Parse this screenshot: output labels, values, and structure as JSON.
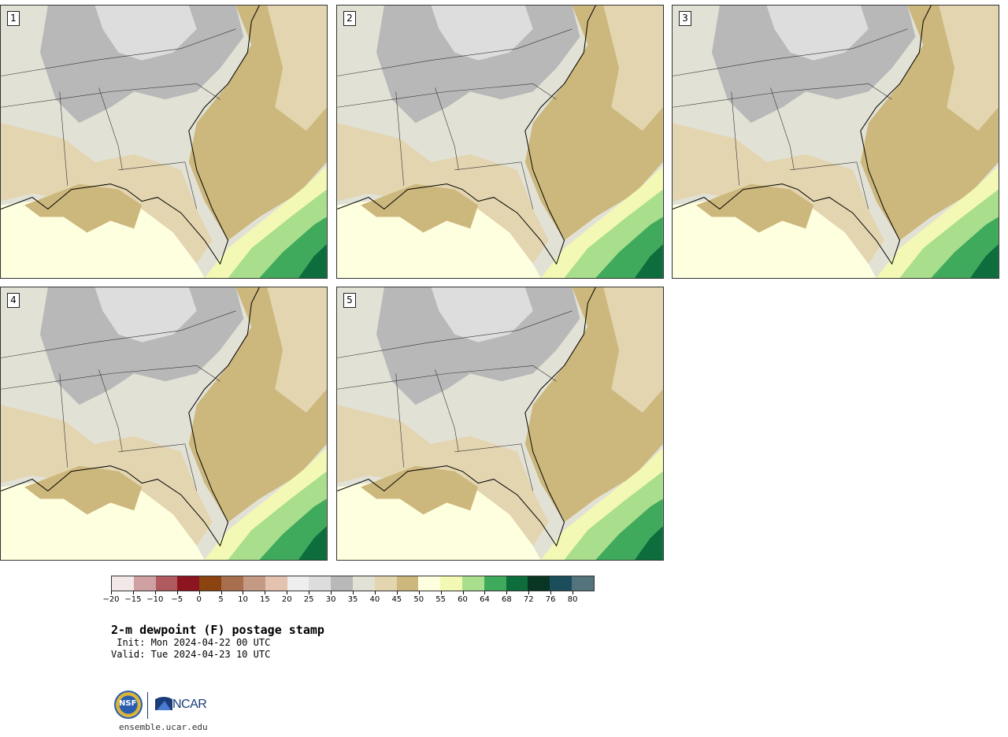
{
  "panels": [
    {
      "label": "1"
    },
    {
      "label": "2"
    },
    {
      "label": "3"
    },
    {
      "label": "4"
    },
    {
      "label": "5"
    }
  ],
  "legend": {
    "colors": [
      "#f3e8e8",
      "#cfa1a2",
      "#b05a5f",
      "#8c1520",
      "#8b4410",
      "#a86f4e",
      "#c59a84",
      "#e3c2b0",
      "#eeeeee",
      "#dddddd",
      "#b8b8b8",
      "#e2e1d6",
      "#e3d5b0",
      "#ccb77c",
      "#feffdf",
      "#f3f8b4",
      "#a8de8c",
      "#3fa95c",
      "#0d6d3d",
      "#093622",
      "#1b4d5a",
      "#53747d"
    ],
    "tick_labels": [
      "−20",
      "−15",
      "−10",
      "−5",
      "0",
      "5",
      "10",
      "15",
      "20",
      "25",
      "30",
      "35",
      "40",
      "45",
      "50",
      "55",
      "60",
      "64",
      "68",
      "72",
      "76",
      "80"
    ]
  },
  "title": "2-m dewpoint (F) postage stamp",
  "init": " Init: Mon 2024-04-22 00 UTC",
  "valid": "Valid: Tue 2024-04-23 10 UTC",
  "logos": {
    "nsf": "NSF",
    "ncar": "NCAR"
  },
  "site": "ensemble.ucar.edu"
}
